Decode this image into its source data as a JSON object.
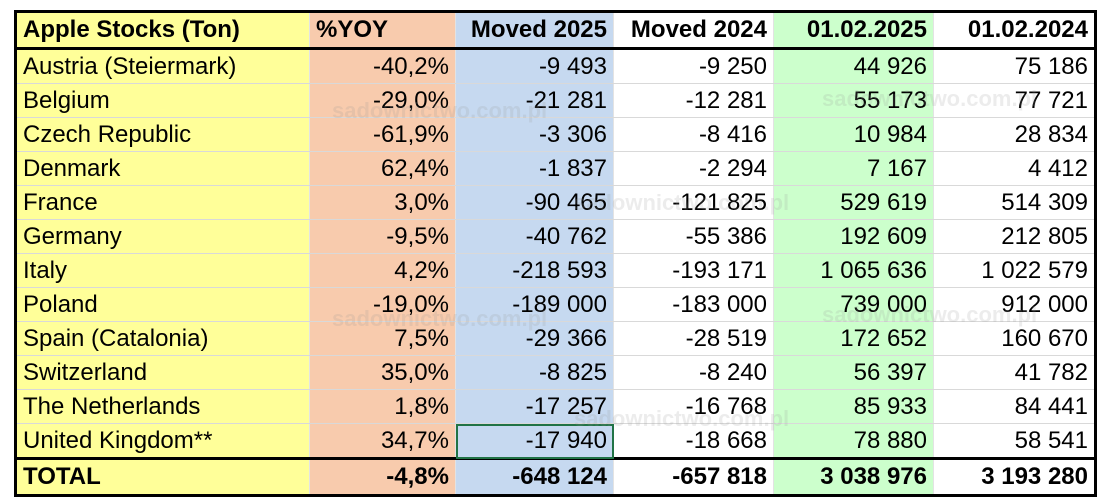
{
  "table": {
    "headers": [
      "Apple Stocks (Ton)",
      "%YOY",
      "Moved 2025",
      "Moved 2024",
      "01.02.2025",
      "01.02.2024"
    ],
    "rows": [
      [
        "Austria (Steiermark)",
        "-40,2%",
        "-9 493",
        "-9 250",
        "44 926",
        "75 186"
      ],
      [
        "Belgium",
        "-29,0%",
        "-21 281",
        "-12 281",
        "55 173",
        "77 721"
      ],
      [
        "Czech Republic",
        "-61,9%",
        "-3 306",
        "-8 416",
        "10 984",
        "28 834"
      ],
      [
        "Denmark",
        "62,4%",
        "-1 837",
        "-2 294",
        "7 167",
        "4 412"
      ],
      [
        "France",
        "3,0%",
        "-90 465",
        "-121 825",
        "529 619",
        "514 309"
      ],
      [
        "Germany",
        "-9,5%",
        "-40 762",
        "-55 386",
        "192 609",
        "212 805"
      ],
      [
        "Italy",
        "4,2%",
        "-218 593",
        "-193 171",
        "1 065 636",
        "1 022 579"
      ],
      [
        "Poland",
        "-19,0%",
        "-189 000",
        "-183 000",
        "739 000",
        "912 000"
      ],
      [
        "Spain (Catalonia)",
        "7,5%",
        "-29 366",
        "-28 519",
        "172 652",
        "160 670"
      ],
      [
        "Switzerland",
        "35,0%",
        "-8 825",
        "-8 240",
        "56 397",
        "41 782"
      ],
      [
        "The Netherlands",
        "1,8%",
        "-17 257",
        "-16 768",
        "85 933",
        "84 441"
      ],
      [
        "United Kingdom**",
        "34,7%",
        "-17 940",
        "-18 668",
        "78 880",
        "58 541"
      ]
    ],
    "total": [
      "TOTAL",
      "-4,8%",
      "-648 124",
      "-657 818",
      "3 038 976",
      "3 193 280"
    ]
  },
  "watermark": "sadownictwo.com.pl",
  "colors": {
    "name_col": "#ffff99",
    "yoy_col": "#f8cbad",
    "moved2025_col": "#c6d9f0",
    "stock2025_col": "#ccffcc",
    "selection": "#217346"
  }
}
